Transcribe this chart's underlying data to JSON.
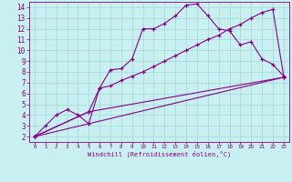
{
  "background_color": "#c8f0f0",
  "grid_color": "#a8dada",
  "line_color": "#880088",
  "xlim": [
    -0.5,
    23.5
  ],
  "ylim": [
    1.5,
    14.5
  ],
  "xticks": [
    0,
    1,
    2,
    3,
    4,
    5,
    6,
    7,
    8,
    9,
    10,
    11,
    12,
    13,
    14,
    15,
    16,
    17,
    18,
    19,
    20,
    21,
    22,
    23
  ],
  "yticks": [
    2,
    3,
    4,
    5,
    6,
    7,
    8,
    9,
    10,
    11,
    12,
    13,
    14
  ],
  "xlabel": "Windchill (Refroidissement éolien,°C)",
  "line1_x": [
    0,
    1,
    2,
    3,
    4,
    5,
    6,
    7,
    8,
    9,
    10,
    11,
    12,
    13,
    14,
    15,
    16,
    17,
    18,
    19,
    20,
    21,
    22,
    23
  ],
  "line1_y": [
    2,
    3,
    4,
    4.5,
    4,
    3.2,
    6.5,
    8.2,
    8.3,
    9.2,
    12,
    12,
    12.5,
    13.2,
    14.2,
    14.3,
    13.2,
    12,
    11.8,
    10.5,
    10.8,
    9.2,
    8.7,
    7.6
  ],
  "line2_x": [
    0,
    5,
    6,
    7,
    8,
    9,
    10,
    11,
    12,
    13,
    14,
    15,
    16,
    17,
    18,
    19,
    20,
    21,
    22,
    23
  ],
  "line2_y": [
    2,
    4.3,
    6.5,
    6.7,
    7.2,
    7.6,
    8.0,
    8.5,
    9.0,
    9.5,
    10.0,
    10.5,
    11.0,
    11.4,
    12.0,
    12.4,
    13.0,
    13.5,
    13.8,
    7.6
  ],
  "line3_x": [
    0,
    23
  ],
  "line3_y": [
    2,
    7.5
  ],
  "line4_x": [
    0,
    5,
    23
  ],
  "line4_y": [
    2,
    4.3,
    7.5
  ]
}
